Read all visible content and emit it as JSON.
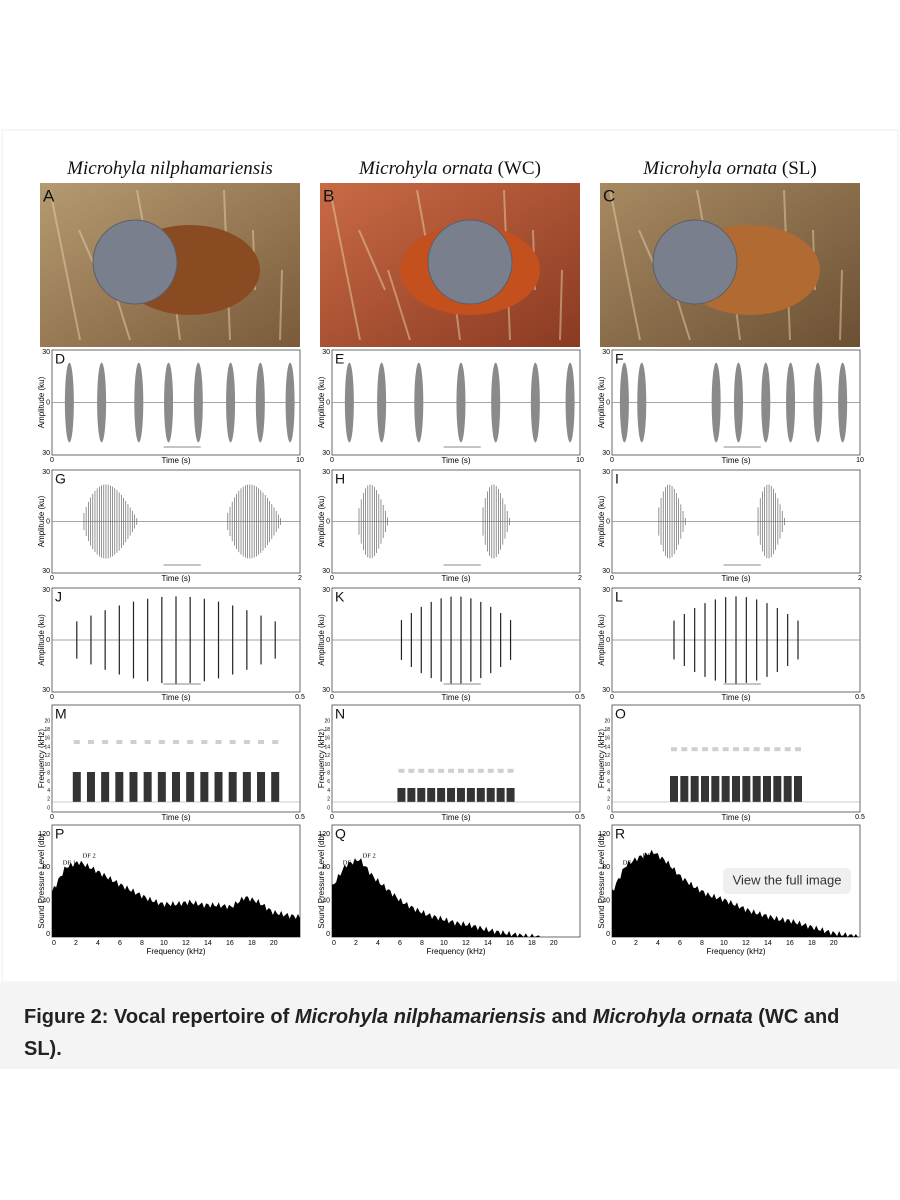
{
  "figure": {
    "columns": [
      {
        "name": "Microhyla nilphamariensis"
      },
      {
        "name": "Microhyla ornata",
        "note": "(WC)"
      },
      {
        "name": "Microhyla ornata",
        "note": "(SL)"
      }
    ],
    "panels": [
      [
        "A",
        "B",
        "C"
      ],
      [
        "D",
        "E",
        "F"
      ],
      [
        "G",
        "H",
        "I"
      ],
      [
        "J",
        "K",
        "L"
      ],
      [
        "M",
        "N",
        "O"
      ],
      [
        "P",
        "Q",
        "R"
      ]
    ],
    "axes": {
      "amplitude_label": "Amplitude (ku)",
      "amplitude_ticks": [
        "30",
        "0",
        "30"
      ],
      "time_label": "Time (s)",
      "time_ticks": [
        [
          "0",
          "10"
        ],
        [
          "0",
          "2"
        ],
        [
          "0",
          "0.5"
        ],
        [
          "0",
          "0.5"
        ]
      ],
      "frequency_label": "Frequency (kHz)",
      "spectrogram_ticks": [
        "0",
        "2",
        "4",
        "6",
        "8",
        "10",
        "12",
        "14",
        "16",
        "18",
        "20"
      ],
      "spl_label": "Sound Pressure Level (db)",
      "spl_ticks": [
        "0",
        "40",
        "80",
        "120"
      ],
      "spectrum_ticks": [
        "0",
        "2",
        "4",
        "6",
        "8",
        "10",
        "12",
        "14",
        "16",
        "18",
        "20"
      ],
      "peaks": [
        "DF 1",
        "DF 2"
      ]
    }
  },
  "button": "View the full image",
  "caption": [
    {
      "text": "Figure 2: Vocal repertoire of "
    },
    {
      "text": "Microhyla nilphamariensis",
      "italic": true
    },
    {
      "text": " and "
    },
    {
      "text": "Microhyla ornata",
      "italic": true
    },
    {
      "text": " (WC and SL)."
    }
  ]
}
